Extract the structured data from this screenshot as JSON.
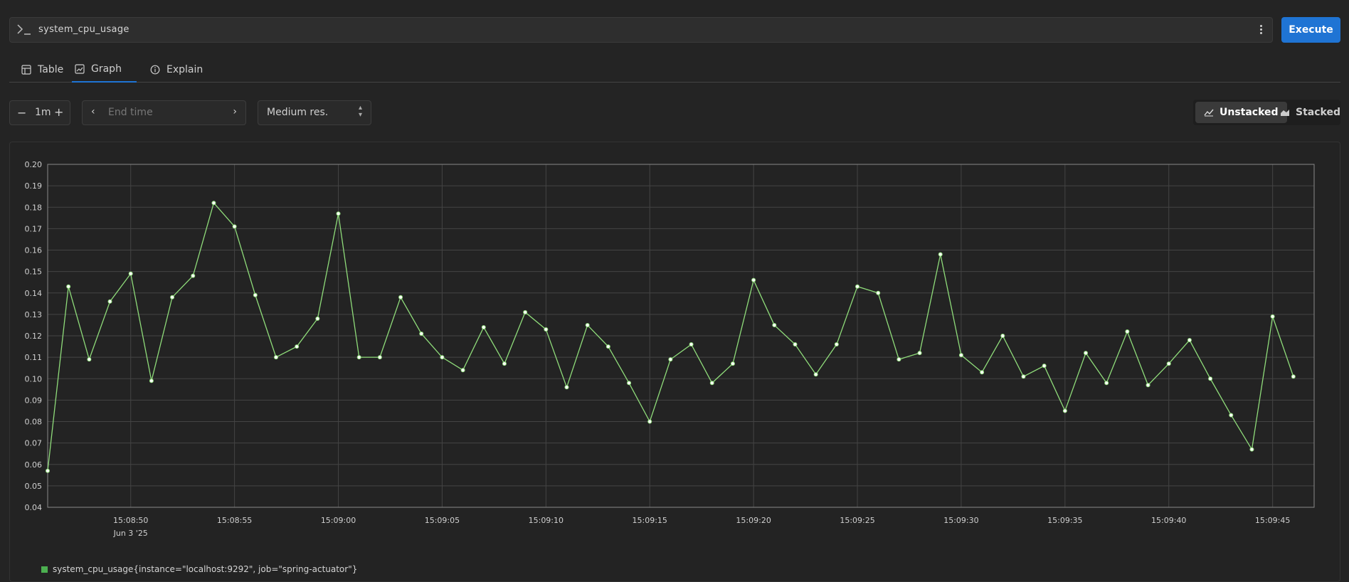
{
  "query": {
    "text": "system_cpu_usage",
    "execute_label": "Execute"
  },
  "tabs": [
    {
      "label": "Table",
      "icon": "table-icon"
    },
    {
      "label": "Graph",
      "icon": "graph-icon",
      "active": true
    },
    {
      "label": "Explain",
      "icon": "info-icon"
    }
  ],
  "controls": {
    "range_value": "1m",
    "end_time_placeholder": "End time",
    "resolution": "Medium res."
  },
  "stacking": {
    "unstacked_label": "Unstacked",
    "stacked_label": "Stacked",
    "active": "Unstacked"
  },
  "legend": {
    "label": "system_cpu_usage{instance=\"localhost:9292\", job=\"spring-actuator\"}"
  },
  "colors": {
    "accent": "#1f74d4",
    "series": "#8fdc7a",
    "legend_swatch": "#4caf50",
    "grid": "#444444"
  },
  "chart_data": {
    "type": "line",
    "ylim": [
      0.04,
      0.2
    ],
    "yticks": [
      "0.04",
      "0.05",
      "0.06",
      "0.07",
      "0.08",
      "0.09",
      "0.10",
      "0.11",
      "0.12",
      "0.13",
      "0.14",
      "0.15",
      "0.16",
      "0.17",
      "0.18",
      "0.19",
      "0.20"
    ],
    "xlim": [
      "15:08:46",
      "15:09:47"
    ],
    "xticks": [
      {
        "t": "15:08:50",
        "label": "15:08:50",
        "sub": "Jun 3 '25"
      },
      {
        "t": "15:08:55",
        "label": "15:08:55"
      },
      {
        "t": "15:09:00",
        "label": "15:09:00"
      },
      {
        "t": "15:09:05",
        "label": "15:09:05"
      },
      {
        "t": "15:09:10",
        "label": "15:09:10"
      },
      {
        "t": "15:09:15",
        "label": "15:09:15"
      },
      {
        "t": "15:09:20",
        "label": "15:09:20"
      },
      {
        "t": "15:09:25",
        "label": "15:09:25"
      },
      {
        "t": "15:09:30",
        "label": "15:09:30"
      },
      {
        "t": "15:09:35",
        "label": "15:09:35"
      },
      {
        "t": "15:09:40",
        "label": "15:09:40"
      },
      {
        "t": "15:09:45",
        "label": "15:09:45"
      }
    ],
    "series": [
      {
        "name": "system_cpu_usage{instance=\"localhost:9292\", job=\"spring-actuator\"}",
        "x": [
          "15:08:46",
          "15:08:47",
          "15:08:48",
          "15:08:49",
          "15:08:50",
          "15:08:51",
          "15:08:52",
          "15:08:53",
          "15:08:54",
          "15:08:55",
          "15:08:56",
          "15:08:57",
          "15:08:58",
          "15:08:59",
          "15:09:00",
          "15:09:01",
          "15:09:02",
          "15:09:03",
          "15:09:04",
          "15:09:05",
          "15:09:06",
          "15:09:07",
          "15:09:08",
          "15:09:09",
          "15:09:10",
          "15:09:11",
          "15:09:12",
          "15:09:13",
          "15:09:14",
          "15:09:15",
          "15:09:16",
          "15:09:17",
          "15:09:18",
          "15:09:19",
          "15:09:20",
          "15:09:21",
          "15:09:22",
          "15:09:23",
          "15:09:24",
          "15:09:25",
          "15:09:26",
          "15:09:27",
          "15:09:28",
          "15:09:29",
          "15:09:30",
          "15:09:31",
          "15:09:32",
          "15:09:33",
          "15:09:34",
          "15:09:35",
          "15:09:36",
          "15:09:37",
          "15:09:38",
          "15:09:39",
          "15:09:40",
          "15:09:41",
          "15:09:42",
          "15:09:43",
          "15:09:44",
          "15:09:45",
          "15:09:46"
        ],
        "values": [
          0.057,
          0.143,
          0.109,
          0.136,
          0.149,
          0.099,
          0.138,
          0.148,
          0.182,
          0.171,
          0.139,
          0.11,
          0.115,
          0.128,
          0.177,
          0.11,
          0.11,
          0.138,
          0.121,
          0.11,
          0.104,
          0.124,
          0.107,
          0.131,
          0.123,
          0.096,
          0.125,
          0.115,
          0.098,
          0.08,
          0.109,
          0.116,
          0.098,
          0.107,
          0.146,
          0.125,
          0.116,
          0.102,
          0.116,
          0.143,
          0.14,
          0.109,
          0.112,
          0.158,
          0.111,
          0.103,
          0.12,
          0.101,
          0.106,
          0.085,
          0.112,
          0.098,
          0.122,
          0.097,
          0.107,
          0.118,
          0.1,
          0.083,
          0.067,
          0.129,
          0.101
        ]
      }
    ]
  }
}
